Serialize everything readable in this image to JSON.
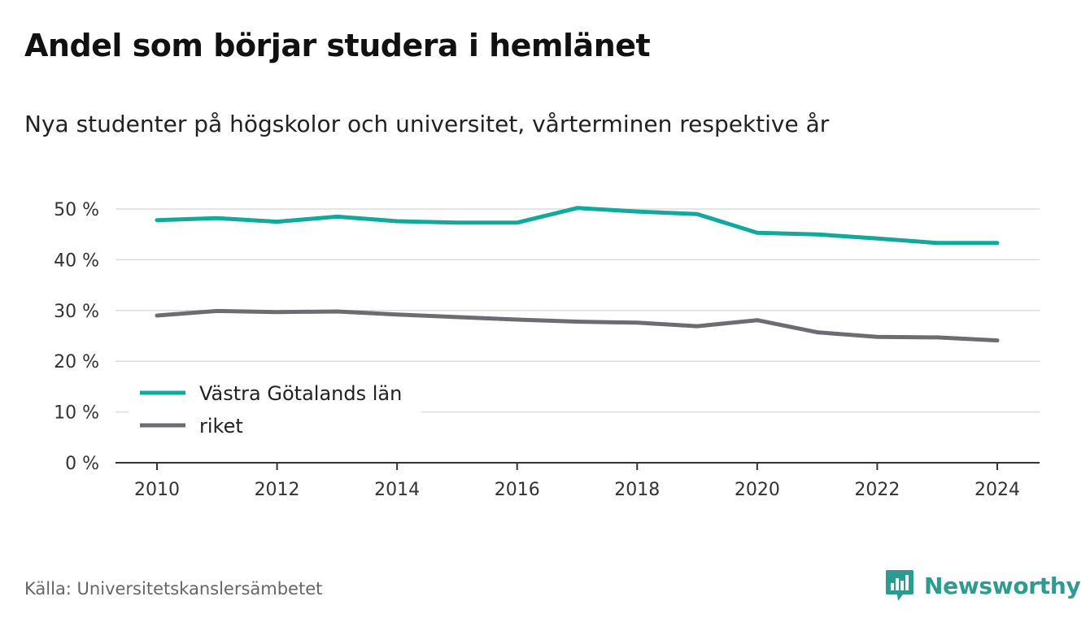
{
  "title": "Andel som börjar studera i hemlänet",
  "subtitle": "Nya studenter på högskolor och universitet, vårterminen respektive år",
  "source": "Källa: Universitetskanslersämbetet",
  "brand": {
    "name": "Newsworthy",
    "icon": "newsworthy-logo-icon",
    "color": "#2d9b8f"
  },
  "chart_data": {
    "type": "line",
    "title": "Andel som börjar studera i hemlänet",
    "x": [
      2010,
      2011,
      2012,
      2013,
      2014,
      2015,
      2016,
      2017,
      2018,
      2019,
      2020,
      2021,
      2022,
      2023,
      2024
    ],
    "xticks": [
      "2010",
      "2012",
      "2014",
      "2016",
      "2018",
      "2020",
      "2022",
      "2024"
    ],
    "yticks": [
      "0 %",
      "10 %",
      "20 %",
      "30 %",
      "40 %",
      "50 %"
    ],
    "ylim": [
      0,
      50
    ],
    "xlim": [
      2010,
      2024
    ],
    "grid": true,
    "legend_position": "bottom-left",
    "series": [
      {
        "name": "Västra Götalands län",
        "color": "#13a89e",
        "values": [
          47.8,
          48.2,
          47.5,
          48.5,
          47.6,
          47.3,
          47.3,
          50.2,
          49.5,
          49.0,
          45.3,
          45.0,
          44.2,
          43.3,
          43.3
        ]
      },
      {
        "name": "riket",
        "color": "#6e6c72",
        "values": [
          29.0,
          29.9,
          29.7,
          29.8,
          29.2,
          28.7,
          28.2,
          27.8,
          27.6,
          26.9,
          28.1,
          25.7,
          24.8,
          24.7,
          24.1
        ]
      }
    ]
  }
}
